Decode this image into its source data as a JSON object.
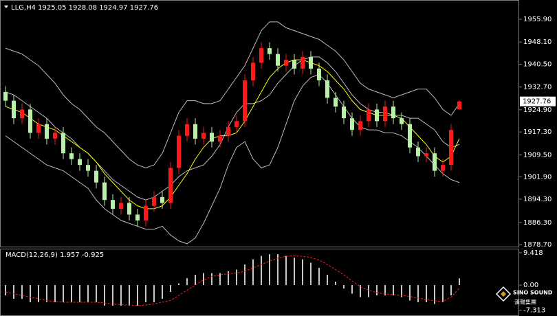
{
  "chart_data": [
    {
      "type": "candlestick",
      "title": "LLG,H4 1925.05 1928.08 1924.97 1927.76",
      "ylim": [
        1877.8,
        1962.5
      ],
      "yticks": [
        1955.9,
        1948.1,
        1940.5,
        1932.7,
        1924.9,
        1917.3,
        1909.5,
        1901.9,
        1894.3,
        1886.3,
        1878.7
      ],
      "ytick_labels": [
        "1955.90",
        "1948.10",
        "1940.50",
        "1932.70",
        "1924.90",
        "1917.30",
        "1909.50",
        "1901.90",
        "1894.30",
        "1886.30",
        "1878.70"
      ],
      "up_color": "#ff1a1a",
      "down_color": "#b8f0a8",
      "open": [
        1931,
        1928,
        1922,
        1925,
        1917,
        1920,
        1915,
        1917,
        1910,
        1908,
        1906,
        1904,
        1900,
        1894,
        1891,
        1893,
        1889,
        1887,
        1892,
        1895,
        1893,
        1905,
        1916,
        1920,
        1915,
        1917,
        1914,
        1916,
        1919,
        1921,
        1935,
        1941,
        1946,
        1944,
        1940,
        1942,
        1939,
        1943,
        1939,
        1935,
        1929,
        1926,
        1922,
        1918,
        1921,
        1925,
        1921,
        1926,
        1922,
        1920,
        1912,
        1909,
        1910,
        1904,
        1906,
        1925.05
      ],
      "high": [
        1933,
        1930,
        1927,
        1927,
        1922,
        1922,
        1919,
        1919,
        1912,
        1910,
        1908,
        1906,
        1902,
        1896,
        1895,
        1895,
        1891,
        1894,
        1897,
        1897,
        1907,
        1918,
        1922,
        1922,
        1919,
        1919,
        1918,
        1921,
        1923,
        1937,
        1943,
        1948,
        1948,
        1946,
        1944,
        1944,
        1945,
        1945,
        1941,
        1937,
        1931,
        1928,
        1924,
        1923,
        1927,
        1927,
        1928,
        1928,
        1924,
        1922,
        1914,
        1912,
        1912,
        1908,
        1920,
        1928.08
      ],
      "low": [
        1926,
        1920,
        1920,
        1915,
        1915,
        1913,
        1913,
        1908,
        1906,
        1904,
        1902,
        1898,
        1892,
        1889,
        1889,
        1887,
        1885,
        1885,
        1890,
        1891,
        1891,
        1903,
        1914,
        1913,
        1913,
        1912,
        1912,
        1914,
        1917,
        1919,
        1933,
        1939,
        1942,
        1938,
        1938,
        1937,
        1937,
        1937,
        1933,
        1927,
        1924,
        1920,
        1916,
        1916,
        1919,
        1919,
        1919,
        1920,
        1918,
        1910,
        1907,
        1907,
        1902,
        1902,
        1904,
        1924.97
      ],
      "close": [
        1928,
        1922,
        1925,
        1917,
        1920,
        1915,
        1917,
        1910,
        1908,
        1906,
        1904,
        1900,
        1894,
        1891,
        1893,
        1889,
        1887,
        1892,
        1895,
        1893,
        1905,
        1916,
        1920,
        1915,
        1917,
        1914,
        1916,
        1919,
        1921,
        1935,
        1941,
        1946,
        1944,
        1940,
        1942,
        1939,
        1943,
        1939,
        1935,
        1929,
        1926,
        1922,
        1918,
        1921,
        1925,
        1921,
        1926,
        1922,
        1920,
        1912,
        1909,
        1910,
        1904,
        1906,
        1918,
        1927.76
      ],
      "overlays": [
        {
          "color": "#bdbdbd",
          "values": [
            1946,
            1945,
            1944,
            1942,
            1940,
            1937,
            1934,
            1930,
            1927,
            1925,
            1922,
            1919,
            1917,
            1914,
            1911,
            1908,
            1906,
            1905,
            1906,
            1910,
            1917,
            1924,
            1928,
            1928,
            1927,
            1927,
            1928,
            1932,
            1936,
            1940,
            1946,
            1952,
            1955,
            1955,
            1953,
            1952,
            1951,
            1950,
            1949,
            1947,
            1945,
            1942,
            1938,
            1934,
            1932,
            1931,
            1930,
            1929,
            1930,
            1931,
            1932,
            1932,
            1929,
            1925,
            1923,
            1927
          ]
        },
        {
          "color": "#bdbdbd",
          "values": [
            1931,
            1930,
            1928,
            1926,
            1924,
            1922,
            1919,
            1917,
            1915,
            1912,
            1910,
            1907,
            1904,
            1901,
            1899,
            1897,
            1895,
            1894,
            1895,
            1897,
            1899,
            1902,
            1904,
            1905,
            1906,
            1909,
            1913,
            1919,
            1924,
            1927,
            1927,
            1928,
            1930,
            1934,
            1937,
            1940,
            1942,
            1943,
            1943,
            1941,
            1938,
            1934,
            1930,
            1927,
            1925,
            1924,
            1924,
            1923,
            1923,
            1922,
            1922,
            1920,
            1918,
            1914,
            1912,
            1913
          ]
        },
        {
          "color": "#bdbdbd",
          "values": [
            1916,
            1914,
            1912,
            1910,
            1908,
            1906,
            1905,
            1904,
            1902,
            1900,
            1898,
            1894,
            1891,
            1889,
            1887,
            1886,
            1885,
            1884,
            1884,
            1885,
            1882,
            1880,
            1879,
            1881,
            1886,
            1892,
            1898,
            1906,
            1912,
            1914,
            1908,
            1905,
            1906,
            1912,
            1920,
            1928,
            1933,
            1936,
            1937,
            1934,
            1930,
            1926,
            1922,
            1919,
            1918,
            1918,
            1917,
            1917,
            1916,
            1914,
            1912,
            1909,
            1906,
            1903,
            1901,
            1900
          ]
        },
        {
          "color": "#ffff00",
          "values": [
            1926,
            1925,
            1924,
            1922,
            1920,
            1919,
            1918,
            1916,
            1914,
            1912,
            1910,
            1907,
            1903,
            1900,
            1897,
            1894,
            1892,
            1891,
            1891,
            1892,
            1895,
            1899,
            1903,
            1908,
            1912,
            1915,
            1916,
            1916,
            1917,
            1921,
            1926,
            1931,
            1936,
            1939,
            1941,
            1942,
            1942,
            1941,
            1940,
            1938,
            1935,
            1932,
            1928,
            1925,
            1924,
            1923,
            1923,
            1923,
            1922,
            1919,
            1916,
            1913,
            1909,
            1907,
            1909,
            1915
          ]
        }
      ]
    },
    {
      "type": "macd",
      "title": "MACD(12,26,9) 1.957 -0.925",
      "ylim": [
        -9.0,
        10.6
      ],
      "yticks": [
        9.418,
        {
          "value": 0,
          "label": "0.00"
        },
        -7.313
      ],
      "color": "#c8c8c8",
      "values": [
        -3,
        -4,
        -4,
        -5,
        -5,
        -5,
        -5,
        -5,
        -5,
        -5,
        -5,
        -5,
        -6,
        -6,
        -6,
        -6,
        -6,
        -5,
        -5,
        -4,
        -2,
        0.5,
        2,
        3,
        3.5,
        3.5,
        3.5,
        4,
        4.5,
        6,
        7.5,
        8.5,
        9,
        9,
        8.5,
        8,
        7.5,
        6.5,
        5,
        3,
        1,
        -1,
        -2.5,
        -3.5,
        -3.5,
        -3,
        -3,
        -3,
        -3.5,
        -4.5,
        -5,
        -5,
        -5.5,
        -5,
        -3,
        1.957
      ],
      "signal": {
        "color": "#ff2020",
        "values": [
          -2,
          -2.5,
          -3,
          -3.5,
          -4,
          -4.5,
          -4.8,
          -5,
          -5,
          -5,
          -5,
          -5,
          -5.2,
          -5.5,
          -5.7,
          -5.8,
          -6,
          -5.8,
          -5.5,
          -5,
          -4.5,
          -3,
          -1.5,
          0,
          1.5,
          2.5,
          3,
          3.3,
          3.5,
          4,
          5,
          6,
          7,
          7.8,
          8.4,
          8.5,
          8.4,
          8,
          7.3,
          6,
          4.5,
          3,
          1.2,
          -0.5,
          -1.5,
          -2.2,
          -2.6,
          -2.8,
          -3,
          -3.3,
          -3.8,
          -4.2,
          -4.6,
          -4.8,
          -3.5,
          -0.925
        ]
      }
    }
  ],
  "watermark": {
    "brand": "SINO SOUND",
    "chinese": "漢聲集團"
  }
}
